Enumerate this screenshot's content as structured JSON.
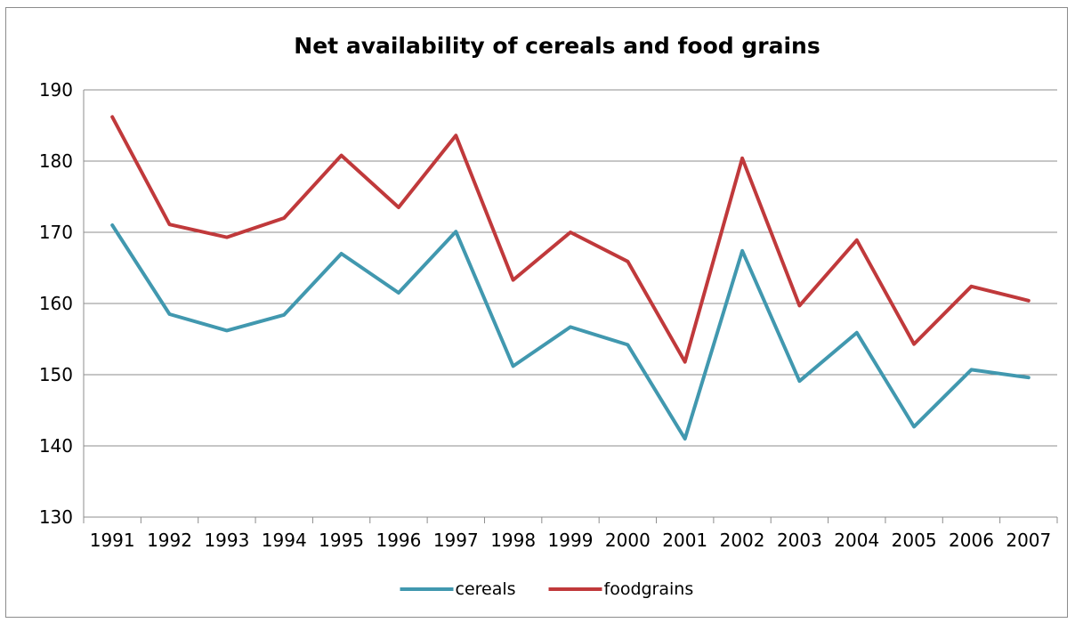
{
  "chart_data": {
    "type": "line",
    "title": "Net availability of cereals and food grains",
    "xlabel": "",
    "ylabel": "",
    "categories": [
      "1991",
      "1992",
      "1993",
      "1994",
      "1995",
      "1996",
      "1997",
      "1998",
      "1999",
      "2000",
      "2001",
      "2002",
      "2003",
      "2004",
      "2005",
      "2006",
      "2007"
    ],
    "ylim": [
      130,
      190
    ],
    "yticks": [
      130,
      140,
      150,
      160,
      170,
      180,
      190
    ],
    "grid": true,
    "legend_position": "bottom",
    "series": [
      {
        "name": "cereals",
        "color": "#4198AF",
        "values": [
          171.0,
          158.5,
          156.2,
          158.4,
          167.0,
          161.5,
          170.1,
          151.2,
          156.7,
          154.2,
          141.0,
          167.4,
          149.1,
          155.9,
          142.7,
          150.7,
          149.6
        ]
      },
      {
        "name": "foodgrains",
        "color": "#C0393B",
        "values": [
          186.2,
          171.1,
          169.3,
          172.0,
          180.8,
          173.5,
          183.6,
          163.3,
          170.0,
          165.9,
          151.8,
          180.4,
          159.7,
          168.9,
          154.3,
          162.4,
          160.4
        ]
      }
    ]
  }
}
